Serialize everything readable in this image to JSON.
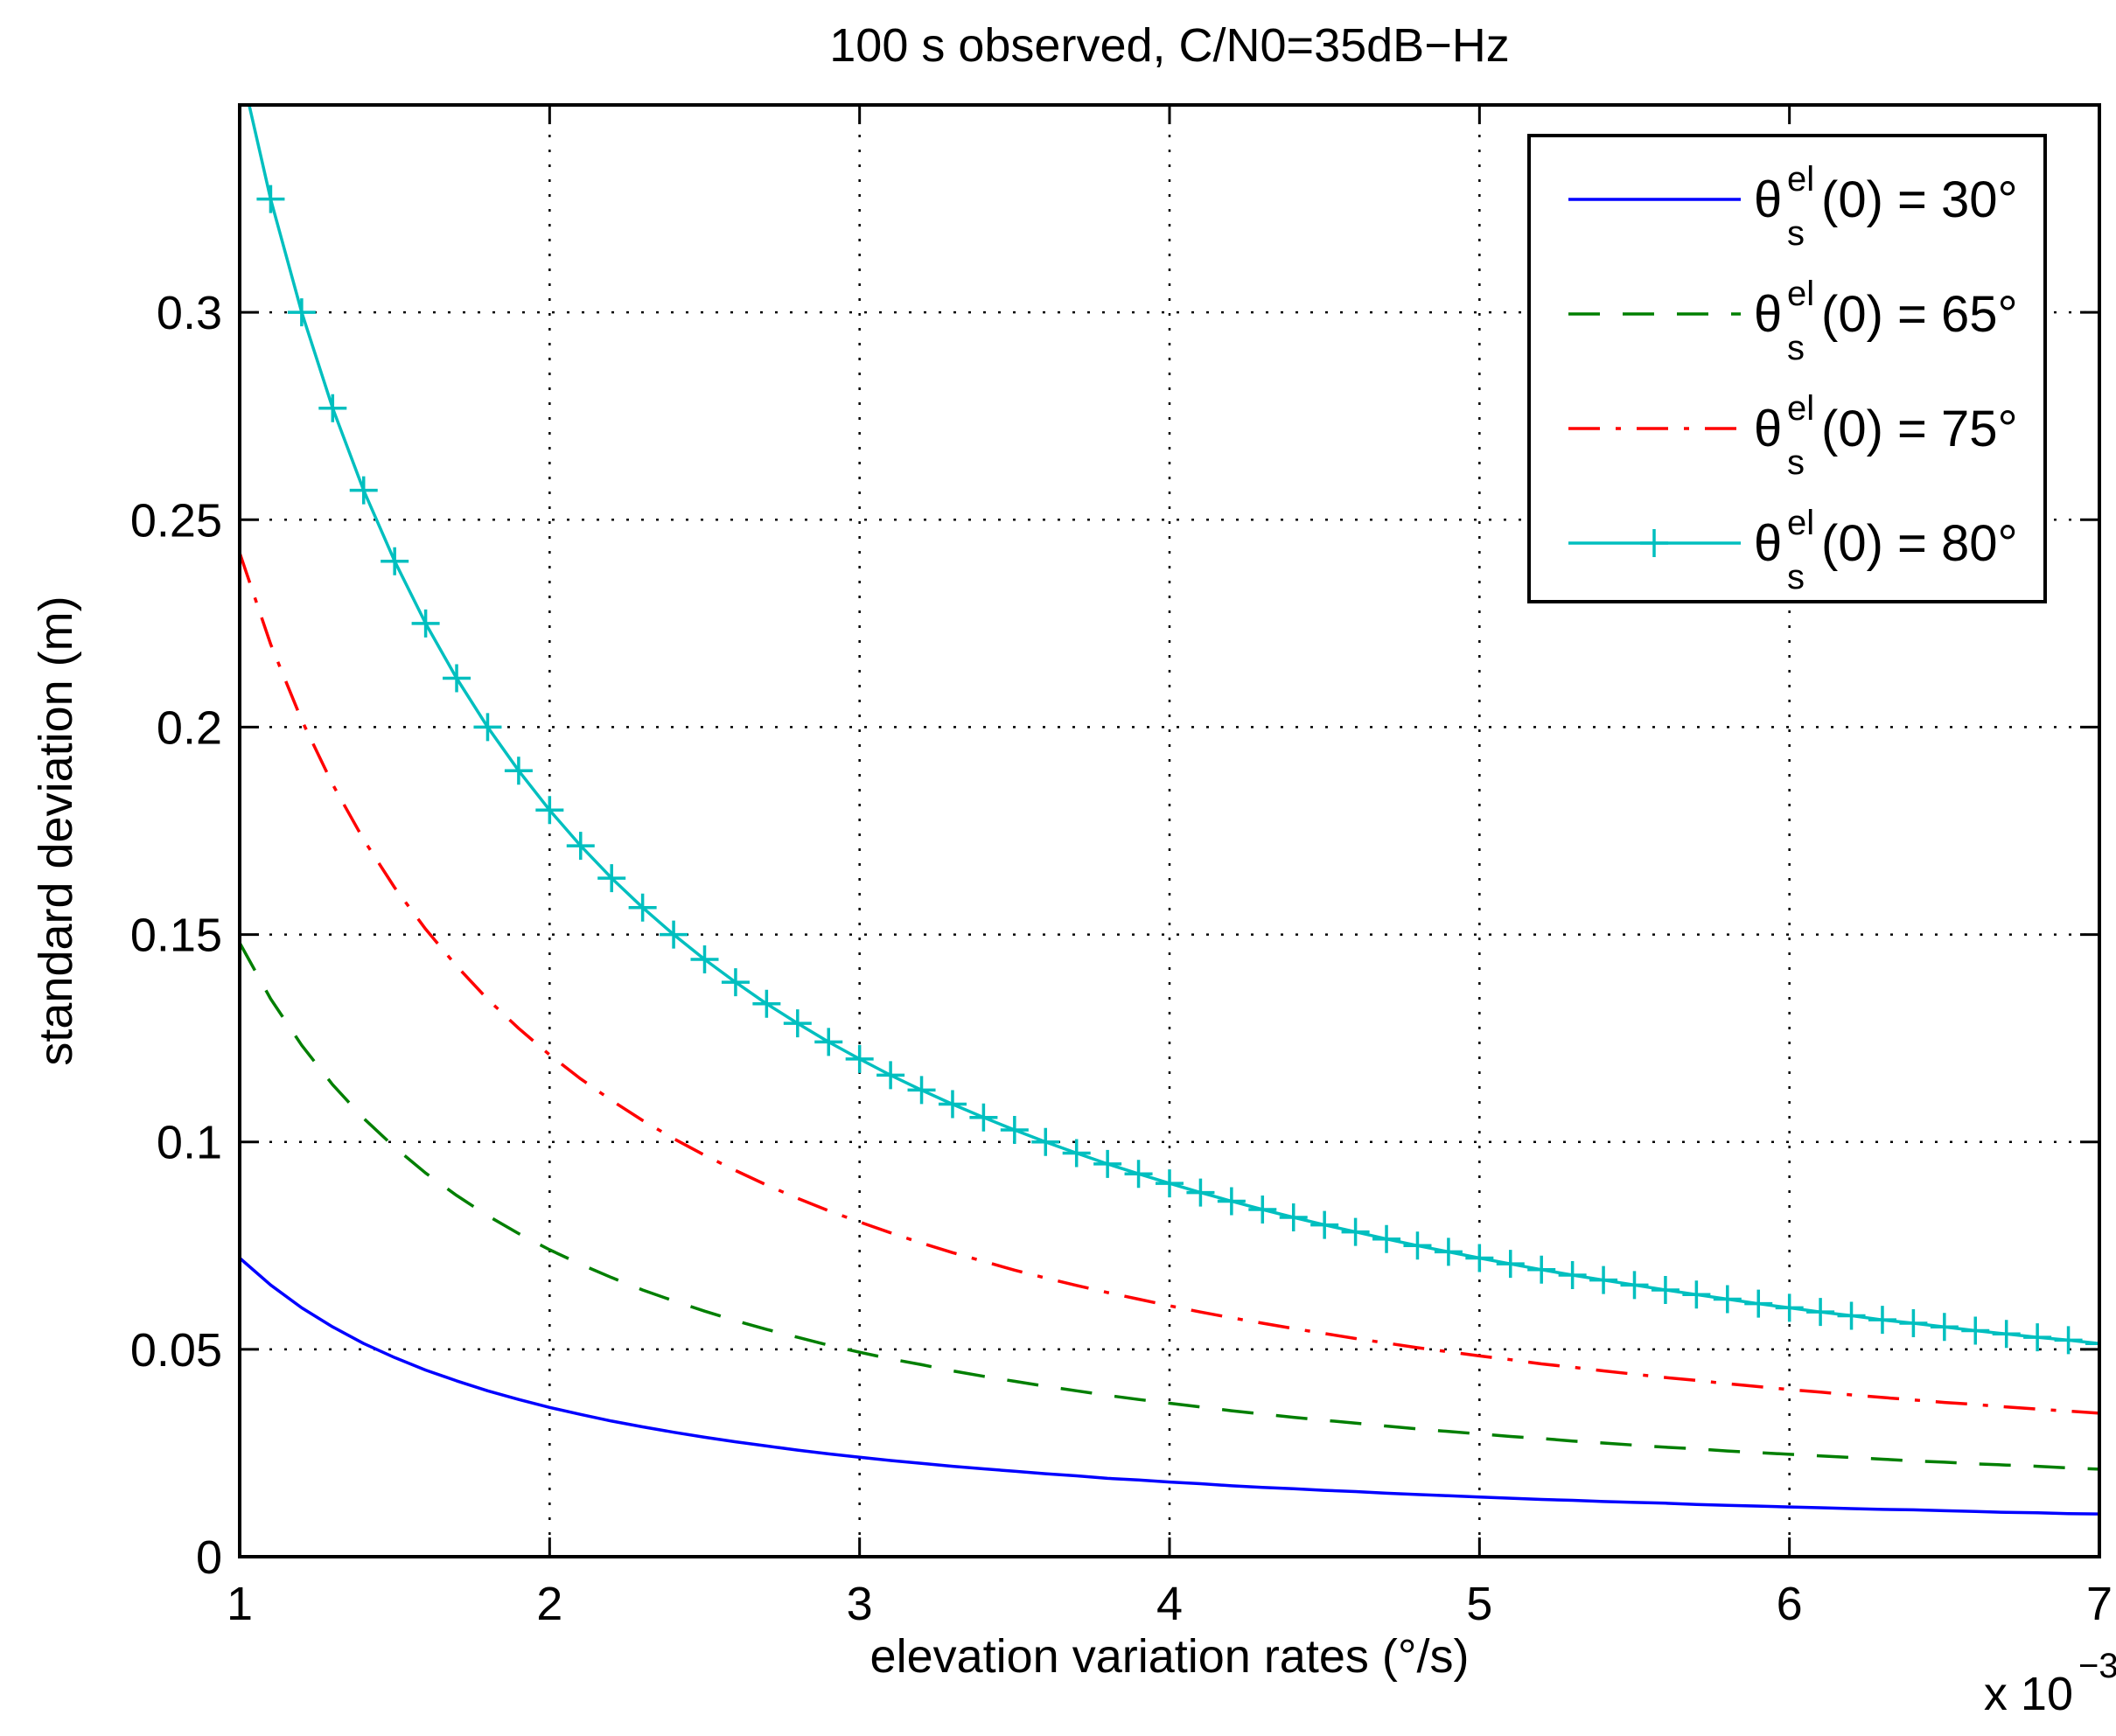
{
  "chart_data": {
    "type": "line",
    "title": "100 s observed,  C/N0=35dB−Hz",
    "xlabel": "elevation variation rates (°/s)",
    "ylabel": "standard deviation (m)",
    "x_multiplier": {
      "base": "x 10",
      "exponent": "−3"
    },
    "xlim": [
      1,
      7
    ],
    "ylim": [
      0,
      0.35
    ],
    "xticks": [
      1,
      2,
      3,
      4,
      5,
      6,
      7
    ],
    "xtick_labels": [
      "1",
      "2",
      "3",
      "4",
      "5",
      "6",
      "7"
    ],
    "yticks": [
      0,
      0.05,
      0.1,
      0.15,
      0.2,
      0.25,
      0.3
    ],
    "ytick_labels": [
      "0",
      "0.05",
      "0.1",
      "0.15",
      "0.2",
      "0.25",
      "0.3"
    ],
    "grid": true,
    "legend_position": "top-right",
    "x": [
      1.0,
      1.1,
      1.2,
      1.3,
      1.4,
      1.5,
      1.6,
      1.7,
      1.8,
      1.9,
      2.0,
      2.1,
      2.2,
      2.3,
      2.4,
      2.5,
      2.6,
      2.7,
      2.8,
      2.9,
      3.0,
      3.1,
      3.2,
      3.3,
      3.4,
      3.5,
      3.6,
      3.7,
      3.8,
      3.9,
      4.0,
      4.1,
      4.2,
      4.3,
      4.4,
      4.5,
      4.6,
      4.7,
      4.8,
      4.9,
      5.0,
      5.1,
      5.2,
      5.3,
      5.4,
      5.5,
      5.6,
      5.7,
      5.8,
      5.9,
      6.0,
      6.1,
      6.2,
      6.3,
      6.4,
      6.5,
      6.6,
      6.7,
      6.8,
      6.9,
      7.0
    ],
    "series": [
      {
        "name": "30",
        "legend_label": {
          "symbol": "θ",
          "sup": "el",
          "sub": "s",
          "rest": "(0) = 30°"
        },
        "color": "#0000ff",
        "style": "solid",
        "marker": "none",
        "values": [
          0.072,
          0.0655,
          0.06,
          0.0554,
          0.0514,
          0.048,
          0.045,
          0.0424,
          0.04,
          0.0379,
          0.036,
          0.0343,
          0.0327,
          0.0313,
          0.03,
          0.0288,
          0.0277,
          0.0267,
          0.0257,
          0.0248,
          0.024,
          0.0232,
          0.0225,
          0.0218,
          0.0212,
          0.0206,
          0.02,
          0.0195,
          0.0189,
          0.0185,
          0.018,
          0.0176,
          0.0171,
          0.0167,
          0.0164,
          0.016,
          0.0157,
          0.0153,
          0.015,
          0.0147,
          0.0144,
          0.0141,
          0.0138,
          0.0136,
          0.0133,
          0.0131,
          0.0129,
          0.0126,
          0.0124,
          0.0122,
          0.012,
          0.0118,
          0.0116,
          0.0114,
          0.0113,
          0.0111,
          0.0109,
          0.0107,
          0.0106,
          0.0104,
          0.0103
        ]
      },
      {
        "name": "65",
        "legend_label": {
          "symbol": "θ",
          "sup": "el",
          "sub": "s",
          "rest": "(0) = 65°"
        },
        "color": "#007f00",
        "style": "dashed",
        "marker": "none",
        "values": [
          0.148,
          0.1345,
          0.1233,
          0.1138,
          0.1057,
          0.0987,
          0.0925,
          0.0871,
          0.0822,
          0.0779,
          0.074,
          0.0705,
          0.0673,
          0.0643,
          0.0617,
          0.0592,
          0.0569,
          0.0548,
          0.0529,
          0.051,
          0.0493,
          0.0477,
          0.0463,
          0.0448,
          0.0435,
          0.0423,
          0.0411,
          0.04,
          0.0389,
          0.0379,
          0.037,
          0.0361,
          0.0352,
          0.0344,
          0.0336,
          0.0329,
          0.0322,
          0.0315,
          0.0308,
          0.0302,
          0.0296,
          0.029,
          0.0285,
          0.0279,
          0.0274,
          0.0269,
          0.0264,
          0.026,
          0.0255,
          0.0251,
          0.0247,
          0.0243,
          0.0239,
          0.0235,
          0.0231,
          0.0228,
          0.0224,
          0.0221,
          0.0218,
          0.0214,
          0.0211
        ]
      },
      {
        "name": "75",
        "legend_label": {
          "symbol": "θ",
          "sup": "el",
          "sub": "s",
          "rest": "(0) = 75°"
        },
        "color": "#ff0000",
        "style": "dashdot",
        "marker": "none",
        "values": [
          0.242,
          0.22,
          0.2017,
          0.1862,
          0.1729,
          0.1613,
          0.1513,
          0.1424,
          0.1344,
          0.1274,
          0.121,
          0.1152,
          0.11,
          0.1052,
          0.1008,
          0.0968,
          0.0931,
          0.0896,
          0.0864,
          0.0834,
          0.0807,
          0.0781,
          0.0756,
          0.0733,
          0.0712,
          0.0691,
          0.0672,
          0.0654,
          0.0637,
          0.0621,
          0.0605,
          0.059,
          0.0576,
          0.0563,
          0.055,
          0.0538,
          0.0526,
          0.0515,
          0.0504,
          0.0494,
          0.0484,
          0.0475,
          0.0465,
          0.0457,
          0.0448,
          0.044,
          0.0432,
          0.0425,
          0.0417,
          0.041,
          0.0403,
          0.0397,
          0.039,
          0.0384,
          0.0378,
          0.0372,
          0.0367,
          0.0361,
          0.0356,
          0.0351,
          0.0346
        ]
      },
      {
        "name": "80",
        "legend_label": {
          "symbol": "θ",
          "sup": "el",
          "sub": "s",
          "rest": "(0) = 80°"
        },
        "color": "#00bfbf",
        "style": "solid",
        "marker": "plus",
        "values": [
          0.36,
          0.3273,
          0.3,
          0.2769,
          0.2571,
          0.24,
          0.225,
          0.2118,
          0.2,
          0.1895,
          0.18,
          0.1714,
          0.1636,
          0.1565,
          0.15,
          0.144,
          0.1385,
          0.1333,
          0.1286,
          0.1241,
          0.12,
          0.1161,
          0.1125,
          0.1091,
          0.1059,
          0.1029,
          0.1,
          0.0973,
          0.0947,
          0.0923,
          0.09,
          0.0878,
          0.0857,
          0.0837,
          0.0818,
          0.08,
          0.0783,
          0.0766,
          0.075,
          0.0735,
          0.072,
          0.0706,
          0.0692,
          0.0679,
          0.0667,
          0.0655,
          0.0643,
          0.0632,
          0.0621,
          0.061,
          0.06,
          0.059,
          0.0581,
          0.0571,
          0.0563,
          0.0554,
          0.0545,
          0.0537,
          0.0529,
          0.0522,
          0.0514
        ]
      }
    ]
  }
}
